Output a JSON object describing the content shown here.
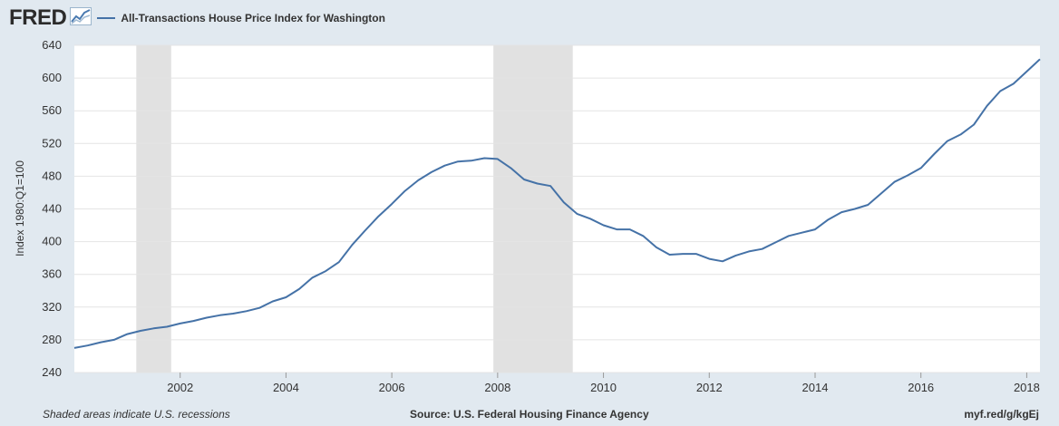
{
  "header": {
    "logo": "FRED",
    "series_label": "All-Transactions House Price Index for Washington"
  },
  "footer": {
    "note": "Shaded areas indicate U.S. recessions",
    "source": "Source: U.S. Federal Housing Finance Agency",
    "link": "myf.red/g/kgEj"
  },
  "colors": {
    "line": "#4572a7",
    "recession": "#e1e1e1",
    "background": "#e1e9f0",
    "plot_background": "#ffffff"
  },
  "chart_data": {
    "type": "line",
    "title": "",
    "xlabel": "",
    "ylabel": "Index 1980:Q1=100",
    "ylim": [
      240,
      640
    ],
    "xlim": [
      2000.0,
      2018.25
    ],
    "y_ticks": [
      240,
      280,
      320,
      360,
      400,
      440,
      480,
      520,
      560,
      600,
      640
    ],
    "x_ticks": [
      2002,
      2004,
      2006,
      2008,
      2010,
      2012,
      2014,
      2016,
      2018
    ],
    "grid": true,
    "legend": "top-left",
    "recessions": [
      {
        "start": 2001.17,
        "end": 2001.83
      },
      {
        "start": 2007.92,
        "end": 2009.42
      }
    ],
    "series": [
      {
        "name": "All-Transactions House Price Index for Washington",
        "x": [
          2000.0,
          2000.25,
          2000.5,
          2000.75,
          2001.0,
          2001.25,
          2001.5,
          2001.75,
          2002.0,
          2002.25,
          2002.5,
          2002.75,
          2003.0,
          2003.25,
          2003.5,
          2003.75,
          2004.0,
          2004.25,
          2004.5,
          2004.75,
          2005.0,
          2005.25,
          2005.5,
          2005.75,
          2006.0,
          2006.25,
          2006.5,
          2006.75,
          2007.0,
          2007.25,
          2007.5,
          2007.75,
          2008.0,
          2008.25,
          2008.5,
          2008.75,
          2009.0,
          2009.25,
          2009.5,
          2009.75,
          2010.0,
          2010.25,
          2010.5,
          2010.75,
          2011.0,
          2011.25,
          2011.5,
          2011.75,
          2012.0,
          2012.25,
          2012.5,
          2012.75,
          2013.0,
          2013.25,
          2013.5,
          2013.75,
          2014.0,
          2014.25,
          2014.5,
          2014.75,
          2015.0,
          2015.25,
          2015.5,
          2015.75,
          2016.0,
          2016.25,
          2016.5,
          2016.75,
          2017.0,
          2017.25,
          2017.5,
          2017.75,
          2018.0,
          2018.25
        ],
        "values": [
          270,
          273,
          277,
          280,
          287,
          291,
          294,
          296,
          300,
          303,
          307,
          310,
          312,
          315,
          319,
          327,
          332,
          342,
          356,
          364,
          375,
          396,
          414,
          431,
          446,
          462,
          475,
          485,
          493,
          498,
          499,
          502,
          501,
          490,
          476,
          471,
          468,
          448,
          434,
          428,
          420,
          415,
          415,
          407,
          393,
          384,
          385,
          385,
          379,
          376,
          383,
          388,
          391,
          399,
          407,
          411,
          415,
          427,
          436,
          440,
          445,
          459,
          473,
          481,
          490,
          507,
          523,
          531,
          543,
          566,
          584,
          593,
          608,
          623
        ]
      }
    ]
  }
}
